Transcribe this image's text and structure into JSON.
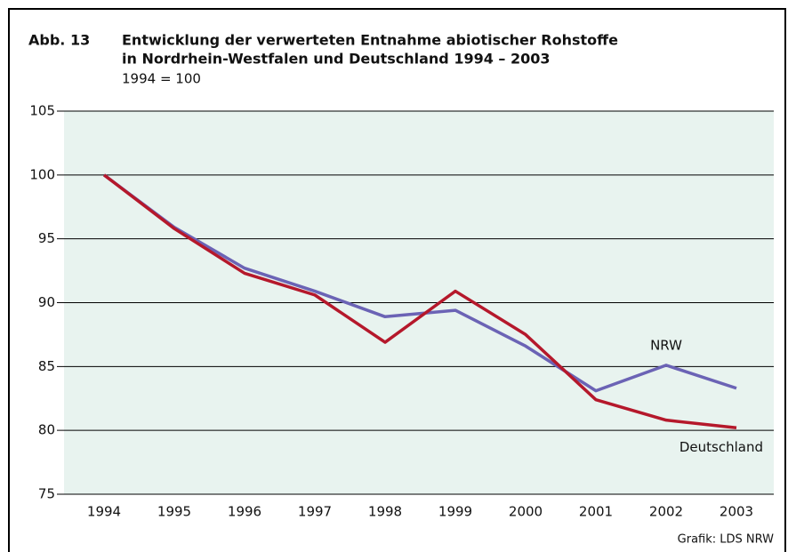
{
  "chart_data": {
    "type": "line",
    "figure_label": "Abb. 13",
    "title": [
      "Entwicklung der verwerteten Entnahme abiotischer Rohstoffe",
      "in Nordrhein-Westfalen und Deutschland 1994 – 2003"
    ],
    "subtitle": "1994 = 100",
    "source": "Grafik: LDS NRW",
    "categories": [
      "1994",
      "1995",
      "1996",
      "1997",
      "1998",
      "1999",
      "2000",
      "2001",
      "2002",
      "2003"
    ],
    "series": [
      {
        "name": "NRW",
        "color": "#6b63b5",
        "values": [
          100,
          95.9,
          92.7,
          90.9,
          88.9,
          89.4,
          86.6,
          83.1,
          85.1,
          83.3
        ]
      },
      {
        "name": "Deutschland",
        "color": "#b5182b",
        "values": [
          100,
          95.8,
          92.3,
          90.6,
          86.9,
          90.9,
          87.5,
          82.4,
          80.8,
          80.2
        ]
      }
    ],
    "ylim": [
      75,
      105
    ],
    "yticks": [
      75,
      80,
      85,
      90,
      95,
      100,
      105
    ],
    "grid": true
  }
}
